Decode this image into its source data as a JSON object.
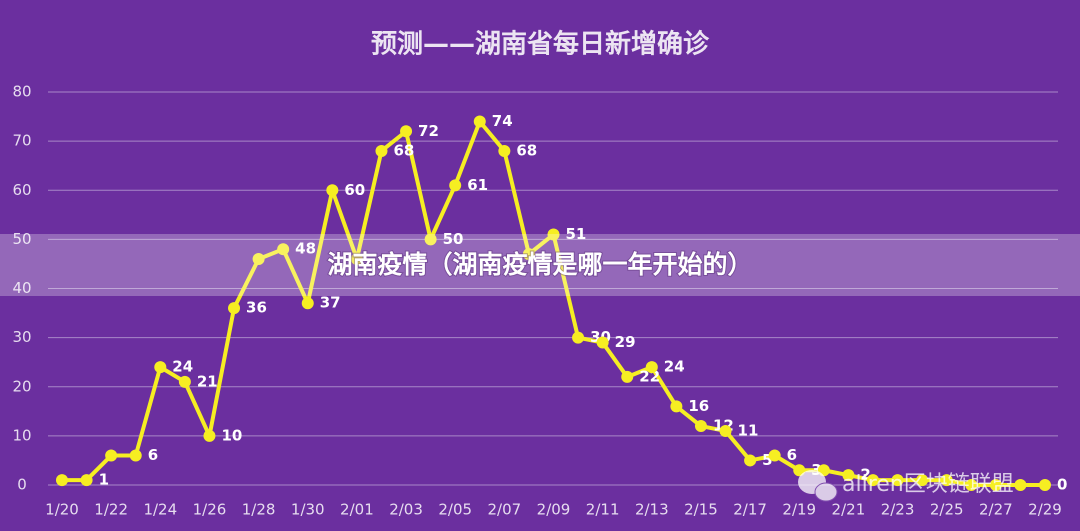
{
  "chart_data": {
    "type": "line",
    "title": "预测——湖南省每日新增确诊",
    "categories": [
      "1/20",
      null,
      "1/22",
      null,
      "1/24",
      null,
      "1/26",
      null,
      "1/28",
      null,
      "1/30",
      null,
      "2/01",
      null,
      "2/03",
      null,
      "2/05",
      null,
      "2/07",
      null,
      "2/09",
      null,
      "2/11",
      null,
      "2/13",
      null,
      "2/15",
      null,
      "2/17",
      null,
      "2/19",
      null,
      "2/21",
      null,
      "2/23",
      null,
      "2/25",
      null,
      "2/27",
      null,
      "2/29"
    ],
    "values": [
      1,
      1,
      6,
      6,
      24,
      21,
      10,
      36,
      46,
      48,
      37,
      60,
      46,
      68,
      72,
      50,
      61,
      74,
      68,
      47,
      51,
      30,
      29,
      22,
      24,
      16,
      12,
      11,
      5,
      6,
      3,
      3,
      2,
      1,
      1,
      1,
      1,
      0,
      0,
      0,
      0
    ],
    "value_labels": [
      null,
      "1",
      null,
      "6",
      "24",
      "21",
      "10",
      "36",
      null,
      "48",
      "37",
      "60",
      null,
      "68",
      "72",
      "50",
      "61",
      "74",
      "68",
      null,
      "51",
      "30",
      "29",
      "22",
      "24",
      "16",
      "12",
      "11",
      "5",
      "6",
      "3",
      null,
      "2",
      null,
      null,
      null,
      null,
      null,
      null,
      null,
      "0"
    ],
    "color": "#f6ee22",
    "ylim": [
      0,
      80
    ],
    "yticks": [
      0,
      10,
      20,
      30,
      40,
      50,
      60,
      70,
      80
    ],
    "grid": true
  },
  "banner": {
    "text": "湖南疫情（湖南疫情是哪一年开始的）"
  },
  "watermark": {
    "text": "allren区块链联盟"
  }
}
